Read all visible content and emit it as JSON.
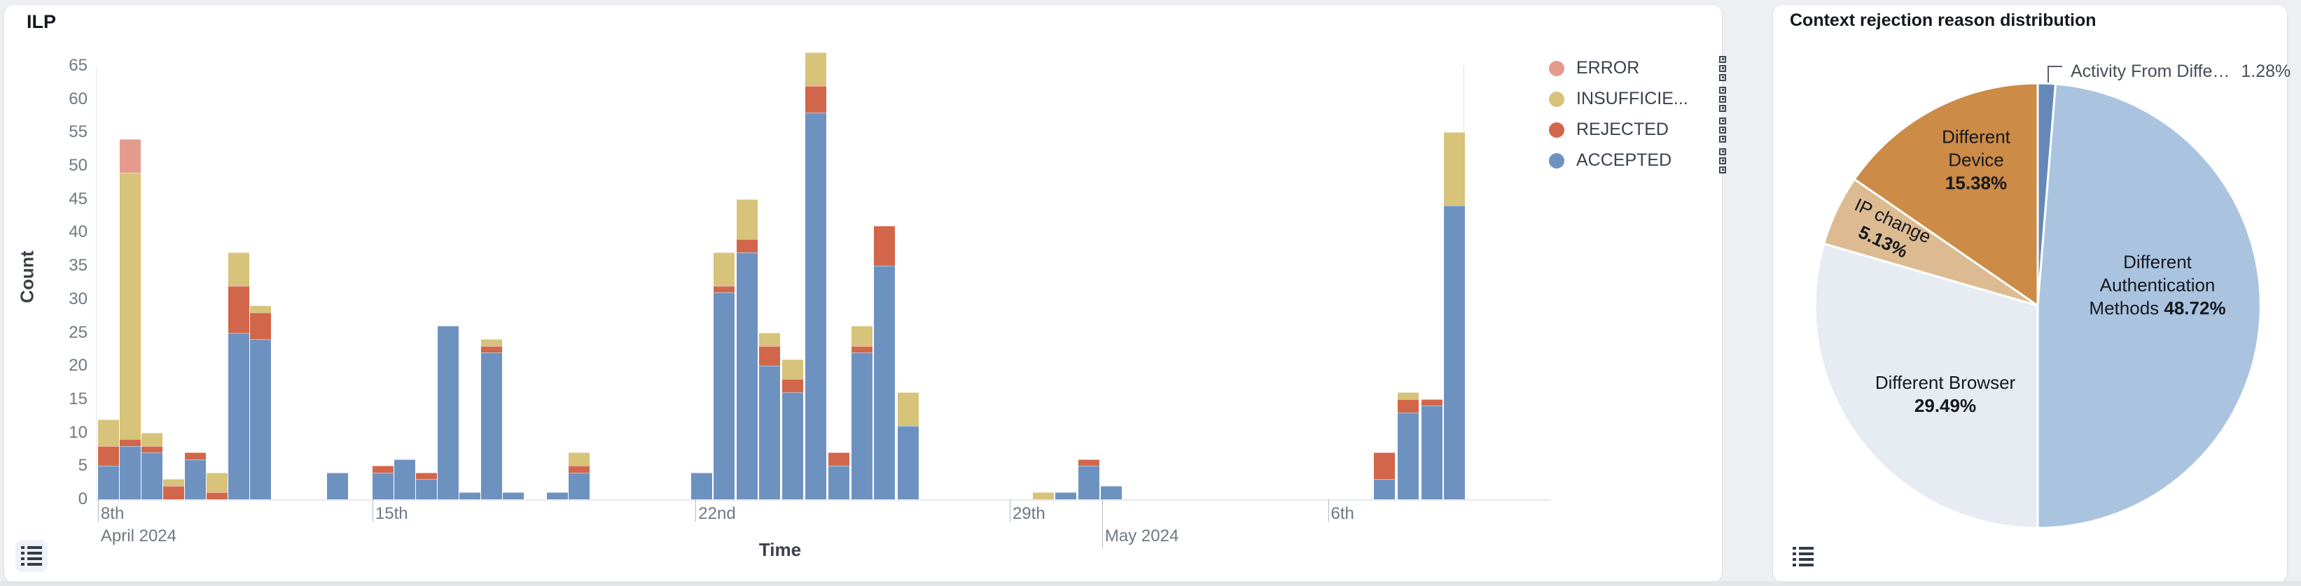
{
  "page": {
    "background": "#edeff3"
  },
  "left_card": {
    "title": "ILP",
    "xlabel": "Time",
    "ylabel": "Count",
    "legend_items": [
      {
        "label": "ERROR",
        "color": "#e59a8e"
      },
      {
        "label": "INSUFFICIE...",
        "color": "#d7c379"
      },
      {
        "label": "REJECTED",
        "color": "#d2664a"
      },
      {
        "label": "ACCEPTED",
        "color": "#6e92c0"
      }
    ]
  },
  "right_card": {
    "title": "Context rejection reason distribution"
  },
  "chart_data": [
    {
      "type": "bar",
      "stacked": true,
      "title": "ILP",
      "xlabel": "Time",
      "ylabel": "Count",
      "ylim": [
        0,
        65
      ],
      "grid": false,
      "legend_position": "right",
      "yticks": [
        0,
        5,
        10,
        15,
        20,
        25,
        30,
        35,
        40,
        45,
        50,
        55,
        60,
        65
      ],
      "series_colors": {
        "accepted": "#6e92c0",
        "rejected": "#d2664a",
        "insufficient": "#d7c379",
        "error": "#e59a8e"
      },
      "stack_order": [
        "accepted",
        "rejected",
        "insufficient",
        "error"
      ],
      "xticks": [
        {
          "x": 0.0015,
          "line1": "8th",
          "line2": "April 2024",
          "long": false
        },
        {
          "x": 0.202,
          "line1": "15th",
          "long": false
        },
        {
          "x": 0.438,
          "line1": "22nd",
          "long": false
        },
        {
          "x": 0.6675,
          "line1": "29th",
          "long": false
        },
        {
          "x": 0.735,
          "line2": "May 2024",
          "long": true
        },
        {
          "x": 0.9,
          "line1": "6th",
          "long": false
        }
      ],
      "bars": [
        {
          "x": 0.0015,
          "accepted": 5,
          "rejected": 3,
          "insufficient": 4,
          "error": 0
        },
        {
          "x": 0.0174,
          "accepted": 8,
          "rejected": 1,
          "insufficient": 40,
          "error": 5
        },
        {
          "x": 0.0332,
          "accepted": 7,
          "rejected": 1,
          "insufficient": 2,
          "error": 0
        },
        {
          "x": 0.0491,
          "accepted": 0,
          "rejected": 2,
          "insufficient": 1,
          "error": 0
        },
        {
          "x": 0.065,
          "accepted": 6,
          "rejected": 1,
          "insufficient": 0,
          "error": 0
        },
        {
          "x": 0.0808,
          "accepted": 0,
          "rejected": 1,
          "insufficient": 3,
          "error": 0
        },
        {
          "x": 0.0967,
          "accepted": 25,
          "rejected": 7,
          "insufficient": 5,
          "error": 0
        },
        {
          "x": 0.1125,
          "accepted": 24,
          "rejected": 4,
          "insufficient": 1,
          "error": 0
        },
        {
          "x": 0.1688,
          "accepted": 4,
          "rejected": 0,
          "insufficient": 0,
          "error": 0
        },
        {
          "x": 0.202,
          "accepted": 4,
          "rejected": 1,
          "insufficient": 0,
          "error": 0
        },
        {
          "x": 0.2179,
          "accepted": 6,
          "rejected": 0,
          "insufficient": 0,
          "error": 0
        },
        {
          "x": 0.2337,
          "accepted": 3,
          "rejected": 1,
          "insufficient": 0,
          "error": 0
        },
        {
          "x": 0.2496,
          "accepted": 26,
          "rejected": 0,
          "insufficient": 0,
          "error": 0
        },
        {
          "x": 0.2655,
          "accepted": 1,
          "rejected": 0,
          "insufficient": 0,
          "error": 0
        },
        {
          "x": 0.2813,
          "accepted": 22,
          "rejected": 1,
          "insufficient": 1,
          "error": 0
        },
        {
          "x": 0.2972,
          "accepted": 1,
          "rejected": 0,
          "insufficient": 0,
          "error": 0
        },
        {
          "x": 0.3294,
          "accepted": 1,
          "rejected": 0,
          "insufficient": 0,
          "error": 0
        },
        {
          "x": 0.3453,
          "accepted": 4,
          "rejected": 1,
          "insufficient": 2,
          "error": 0
        },
        {
          "x": 0.4348,
          "accepted": 4,
          "rejected": 0,
          "insufficient": 0,
          "error": 0
        },
        {
          "x": 0.4512,
          "accepted": 31,
          "rejected": 1,
          "insufficient": 5,
          "error": 0
        },
        {
          "x": 0.468,
          "accepted": 37,
          "rejected": 2,
          "insufficient": 6,
          "error": 0
        },
        {
          "x": 0.4844,
          "accepted": 20,
          "rejected": 3,
          "insufficient": 2,
          "error": 0
        },
        {
          "x": 0.5013,
          "accepted": 16,
          "rejected": 2,
          "insufficient": 3,
          "error": 0
        },
        {
          "x": 0.5182,
          "accepted": 58,
          "rejected": 4,
          "insufficient": 5,
          "error": 0
        },
        {
          "x": 0.535,
          "accepted": 5,
          "rejected": 2,
          "insufficient": 0,
          "error": 0
        },
        {
          "x": 0.5519,
          "accepted": 22,
          "rejected": 1,
          "insufficient": 3,
          "error": 0
        },
        {
          "x": 0.5683,
          "accepted": 35,
          "rejected": 6,
          "insufficient": 0,
          "error": 0
        },
        {
          "x": 0.5857,
          "accepted": 11,
          "rejected": 0,
          "insufficient": 5,
          "error": 0
        },
        {
          "x": 0.6844,
          "accepted": 0,
          "rejected": 0,
          "insufficient": 1,
          "error": 0
        },
        {
          "x": 0.7008,
          "accepted": 1,
          "rejected": 0,
          "insufficient": 0,
          "error": 0
        },
        {
          "x": 0.7176,
          "accepted": 5,
          "rejected": 1,
          "insufficient": 0,
          "error": 0
        },
        {
          "x": 0.734,
          "accepted": 2,
          "rejected": 0,
          "insufficient": 0,
          "error": 0
        },
        {
          "x": 0.9335,
          "accepted": 3,
          "rejected": 4,
          "insufficient": 0,
          "error": 0
        },
        {
          "x": 0.9509,
          "accepted": 13,
          "rejected": 2,
          "insufficient": 1,
          "error": 0
        },
        {
          "x": 0.9683,
          "accepted": 14,
          "rejected": 1,
          "insufficient": 0,
          "error": 0
        },
        {
          "x": 0.9847,
          "accepted": 44,
          "rejected": 0,
          "insufficient": 11,
          "error": 0
        }
      ]
    },
    {
      "type": "pie",
      "title": "Context rejection reason distribution",
      "geometry": {
        "cx": 378,
        "cy": 430,
        "r": 318,
        "start": "top",
        "direction": "clockwise"
      },
      "slices": [
        {
          "name": "Activity From Different Location",
          "value": 1.28,
          "color": "#6489b8",
          "callout": {
            "text": "Activity From Diffe…",
            "pct": "1.28%",
            "x": 425,
            "y": 96,
            "elbow": [
              [
                393,
                111
              ],
              [
                393,
                88
              ],
              [
                413,
                88
              ]
            ]
          }
        },
        {
          "name": "Different Authentication Methods",
          "value": 48.72,
          "color": "#aac4e0",
          "label": {
            "x": 549,
            "y": 401,
            "rotate": 0,
            "lines": [
              [
                {
                  "t": "Different"
                }
              ],
              [
                {
                  "t": "Authentication"
                }
              ],
              [
                {
                  "t": "Methods "
                },
                {
                  "t": "48.72%",
                  "b": 1
                }
              ]
            ]
          }
        },
        {
          "name": "Different Browser",
          "value": 29.49,
          "color": "#e7ebf2",
          "label": {
            "x": 246,
            "y": 557,
            "rotate": 0,
            "lines": [
              [
                {
                  "t": "Different Browser"
                }
              ],
              [
                {
                  "t": "29.49%",
                  "b": 1
                }
              ]
            ]
          }
        },
        {
          "name": "IP change",
          "value": 5.13,
          "color": "#ddbb92",
          "label": {
            "x": 164,
            "y": 324,
            "rotate": 25,
            "lines": [
              [
                {
                  "t": "IP change"
                }
              ],
              [
                {
                  "t": "5.13%",
                  "b": 1
                }
              ]
            ]
          }
        },
        {
          "name": "Different Device",
          "value": 15.38,
          "color": "#cc8b47",
          "label": {
            "x": 290,
            "y": 222,
            "rotate": 0,
            "lines": [
              [
                {
                  "t": "Different"
                }
              ],
              [
                {
                  "t": "Device"
                }
              ],
              [
                {
                  "t": "15.38%",
                  "b": 1
                }
              ]
            ]
          }
        }
      ]
    }
  ]
}
